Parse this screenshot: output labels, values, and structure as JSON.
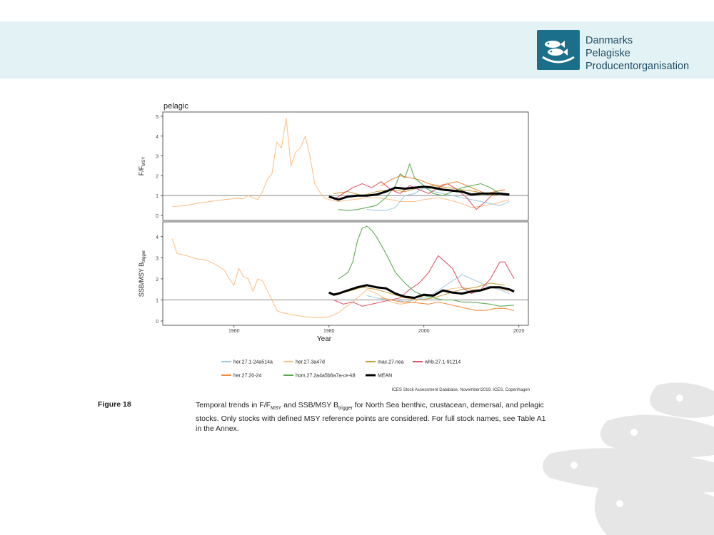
{
  "header": {
    "org_name_line1": "Danmarks",
    "org_name_line2": "Pelagiske",
    "org_name_line3": "Producentorganisation",
    "band_color": "#e3f2f4",
    "logo_color": "#1b6f8a"
  },
  "chart_data": {
    "type": "line",
    "panel_title": "pelagic",
    "xlabel": "Year",
    "xlim": [
      1945,
      2022
    ],
    "x_ticks": [
      1960,
      1980,
      2000,
      2020
    ],
    "legend_position": "bottom",
    "series_colors": {
      "her.27.1-24a514a": "#9ecae1",
      "her.27.3a47d": "#fdc086",
      "mac.27.nea": "#c8a23c",
      "whb.27.1-91214": "#e05260",
      "her.27.20-24": "#f08a3c",
      "hom.27.2a4a5b6a7a-ce-k8": "#5aa84e",
      "MEAN": "#000000"
    },
    "legend": [
      "her.27.1-24a514a",
      "her.27.3a47d",
      "mac.27.nea",
      "whb.27.1-91214",
      "her.27.20-24",
      "hom.27.2a4a5b6a7a-ce-k8",
      "MEAN"
    ],
    "panels": [
      {
        "ylabel_main": "F/F",
        "ylabel_sub": "MSY",
        "ylim": [
          0,
          5
        ],
        "y_ticks": [
          0,
          1,
          2,
          3,
          4,
          5
        ],
        "reference_line": 1,
        "series": [
          {
            "name": "her.27.3a47d",
            "x": [
              1947,
              1950,
              1952,
              1955,
              1958,
              1960,
              1962,
              1963,
              1965,
              1966,
              1967,
              1968,
              1969,
              1970,
              1971,
              1972,
              1973,
              1974,
              1975,
              1976,
              1977,
              1978,
              1979,
              1980,
              1982,
              1985,
              1988,
              1990,
              1993,
              1995,
              1998,
              2000,
              2003,
              2005,
              2008,
              2010,
              2013,
              2015,
              2018
            ],
            "y": [
              0.45,
              0.5,
              0.6,
              0.7,
              0.8,
              0.85,
              0.85,
              1.0,
              0.8,
              1.2,
              1.8,
              2.1,
              3.7,
              3.4,
              4.9,
              2.5,
              3.2,
              3.4,
              4.0,
              3.0,
              1.6,
              1.2,
              0.9,
              0.8,
              0.7,
              0.8,
              0.9,
              0.9,
              0.8,
              0.7,
              0.7,
              0.8,
              0.9,
              0.8,
              0.6,
              0.4,
              0.5,
              0.6,
              0.8
            ]
          },
          {
            "name": "her.27.1-24a514a",
            "x": [
              1988,
              1990,
              1992,
              1994,
              1996,
              1998,
              2000,
              2002,
              2004,
              2006,
              2008,
              2010,
              2012,
              2014,
              2016,
              2018
            ],
            "y": [
              0.3,
              0.25,
              0.25,
              0.4,
              1.0,
              1.1,
              1.4,
              1.2,
              1.1,
              1.0,
              0.9,
              0.8,
              0.7,
              0.6,
              0.5,
              0.7
            ]
          },
          {
            "name": "mac.27.nea",
            "x": [
              1981,
              1984,
              1987,
              1990,
              1993,
              1996,
              1999,
              2002,
              2005,
              2008,
              2011,
              2014,
              2017
            ],
            "y": [
              1.1,
              1.2,
              1.0,
              1.2,
              1.3,
              1.2,
              1.4,
              1.5,
              1.4,
              1.3,
              1.2,
              1.0,
              1.1
            ]
          },
          {
            "name": "whb.27.1-91214",
            "x": [
              1981,
              1983,
              1985,
              1987,
              1989,
              1991,
              1993,
              1995,
              1997,
              1999,
              2001,
              2003,
              2005,
              2007,
              2009,
              2011,
              2013,
              2015,
              2017
            ],
            "y": [
              0.8,
              1.1,
              1.4,
              1.6,
              1.4,
              1.7,
              1.3,
              1.1,
              1.5,
              1.3,
              1.1,
              1.4,
              1.6,
              1.3,
              0.9,
              0.3,
              0.7,
              1.2,
              1.3
            ]
          },
          {
            "name": "her.27.20-24",
            "x": [
              1991,
              1993,
              1995,
              1997,
              1999,
              2001,
              2003,
              2005,
              2007,
              2009,
              2011,
              2013,
              2015,
              2017
            ],
            "y": [
              1.5,
              1.8,
              2.0,
              1.9,
              1.8,
              1.6,
              1.5,
              1.6,
              1.7,
              1.5,
              1.3,
              1.1,
              1.2,
              1.3
            ]
          },
          {
            "name": "hom.27.2a4a5b6a7a-ce-k8",
            "x": [
              1982,
              1984,
              1986,
              1988,
              1990,
              1992,
              1994,
              1995,
              1996,
              1997,
              1998,
              2000,
              2002,
              2004,
              2006,
              2008,
              2010,
              2012,
              2014,
              2016
            ],
            "y": [
              0.3,
              0.25,
              0.3,
              0.4,
              0.5,
              0.9,
              1.5,
              2.1,
              1.9,
              2.6,
              1.9,
              1.5,
              1.1,
              1.0,
              1.2,
              1.4,
              1.5,
              1.6,
              1.4,
              1.1
            ]
          },
          {
            "name": "MEAN",
            "x": [
              1980,
              1982,
              1984,
              1986,
              1988,
              1990,
              1992,
              1994,
              1996,
              1998,
              2000,
              2002,
              2004,
              2006,
              2008,
              2010,
              2012,
              2014,
              2016,
              2018
            ],
            "y": [
              0.95,
              0.8,
              0.95,
              1.0,
              1.0,
              1.05,
              1.2,
              1.4,
              1.35,
              1.4,
              1.45,
              1.4,
              1.3,
              1.25,
              1.2,
              1.05,
              1.1,
              1.1,
              1.1,
              1.05
            ]
          }
        ]
      },
      {
        "ylabel_main": "SSB/MSY B",
        "ylabel_sub": "trigger",
        "ylim": [
          0,
          4.5
        ],
        "y_ticks": [
          0,
          1,
          2,
          3,
          4
        ],
        "reference_line": 1,
        "series": [
          {
            "name": "her.27.3a47d",
            "x": [
              1947,
              1948,
              1950,
              1952,
              1954,
              1956,
              1958,
              1959,
              1960,
              1961,
              1962,
              1963,
              1964,
              1965,
              1966,
              1968,
              1969,
              1970,
              1972,
              1975,
              1978,
              1980,
              1982,
              1985,
              1988,
              1990,
              1993,
              1995,
              1998,
              2000,
              2003,
              2005,
              2008,
              2010,
              2013,
              2015,
              2018
            ],
            "y": [
              3.9,
              3.2,
              3.1,
              2.95,
              2.9,
              2.7,
              2.4,
              2.0,
              1.7,
              2.5,
              2.1,
              2.0,
              1.4,
              2.0,
              1.9,
              1.0,
              0.5,
              0.4,
              0.3,
              0.2,
              0.15,
              0.2,
              0.4,
              0.9,
              1.5,
              1.3,
              0.9,
              0.8,
              0.9,
              1.2,
              1.3,
              1.5,
              1.6,
              1.5,
              1.5,
              1.6,
              1.4
            ]
          },
          {
            "name": "her.27.1-24a514a",
            "x": [
              1988,
              1990,
              1992,
              1994,
              1996,
              1998,
              2000,
              2002,
              2004,
              2006,
              2008,
              2010,
              2012,
              2014,
              2016,
              2018
            ],
            "y": [
              1.2,
              1.1,
              1.0,
              1.0,
              0.9,
              1.0,
              1.1,
              1.3,
              1.6,
              1.9,
              2.2,
              2.0,
              1.8,
              1.6,
              1.5,
              1.3
            ]
          },
          {
            "name": "mac.27.nea",
            "x": [
              1981,
              1984,
              1987,
              1990,
              1993,
              1996,
              1999,
              2002,
              2005,
              2008,
              2011,
              2014,
              2017
            ],
            "y": [
              1.3,
              1.4,
              1.6,
              1.5,
              1.3,
              1.1,
              1.0,
              1.1,
              1.3,
              1.5,
              1.6,
              1.8,
              1.7
            ]
          },
          {
            "name": "whb.27.1-91214",
            "x": [
              1981,
              1983,
              1985,
              1987,
              1989,
              1991,
              1993,
              1995,
              1997,
              1999,
              2001,
              2003,
              2004,
              2006,
              2008,
              2010,
              2012,
              2014,
              2016,
              2017,
              2019
            ],
            "y": [
              1.0,
              0.8,
              0.9,
              0.7,
              0.8,
              0.9,
              1.0,
              1.1,
              1.5,
              1.8,
              2.3,
              3.1,
              2.9,
              2.5,
              1.6,
              1.3,
              1.5,
              2.0,
              2.8,
              2.8,
              2.0
            ]
          },
          {
            "name": "her.27.20-24",
            "x": [
              1991,
              1993,
              1995,
              1997,
              1999,
              2001,
              2003,
              2005,
              2007,
              2009,
              2011,
              2013,
              2015,
              2017,
              2019
            ],
            "y": [
              1.1,
              1.0,
              0.9,
              0.9,
              0.85,
              0.8,
              0.9,
              0.8,
              0.7,
              0.6,
              0.5,
              0.5,
              0.6,
              0.6,
              0.5
            ]
          },
          {
            "name": "hom.27.2a4a5b6a7a-ce-k8",
            "x": [
              1982,
              1984,
              1985,
              1986,
              1987,
              1988,
              1989,
              1990,
              1992,
              1994,
              1996,
              1998,
              2000,
              2002,
              2004,
              2006,
              2008,
              2010,
              2012,
              2014,
              2016,
              2019
            ],
            "y": [
              2.0,
              2.3,
              2.8,
              3.8,
              4.4,
              4.5,
              4.3,
              4.0,
              3.2,
              2.3,
              1.8,
              1.4,
              1.2,
              1.1,
              1.0,
              1.0,
              0.9,
              0.9,
              0.85,
              0.8,
              0.7,
              0.75
            ]
          },
          {
            "name": "MEAN",
            "x": [
              1980,
              1981,
              1982,
              1984,
              1986,
              1988,
              1990,
              1992,
              1994,
              1996,
              1998,
              2000,
              2002,
              2004,
              2006,
              2008,
              2010,
              2012,
              2014,
              2016,
              2018,
              2019
            ],
            "y": [
              1.35,
              1.25,
              1.3,
              1.45,
              1.6,
              1.7,
              1.6,
              1.55,
              1.3,
              1.15,
              1.1,
              1.25,
              1.2,
              1.45,
              1.35,
              1.3,
              1.4,
              1.45,
              1.6,
              1.6,
              1.5,
              1.4
            ]
          }
        ]
      }
    ]
  },
  "source_note": "ICES Stock Assessment Database, November/2019. ICES, Copenhagen",
  "caption": {
    "label": "Figure 18",
    "text_a": "Temporal trends in F/F",
    "text_a_sub": "MSY",
    "text_b": " and SSB/MSY B",
    "text_b_sub": "trigger",
    "text_c": " for North Sea benthic, crustacean, demersal, and pelagic stocks. Only stocks with defined MSY reference points are considered. For full stock names, see Table A1 in the Annex."
  }
}
